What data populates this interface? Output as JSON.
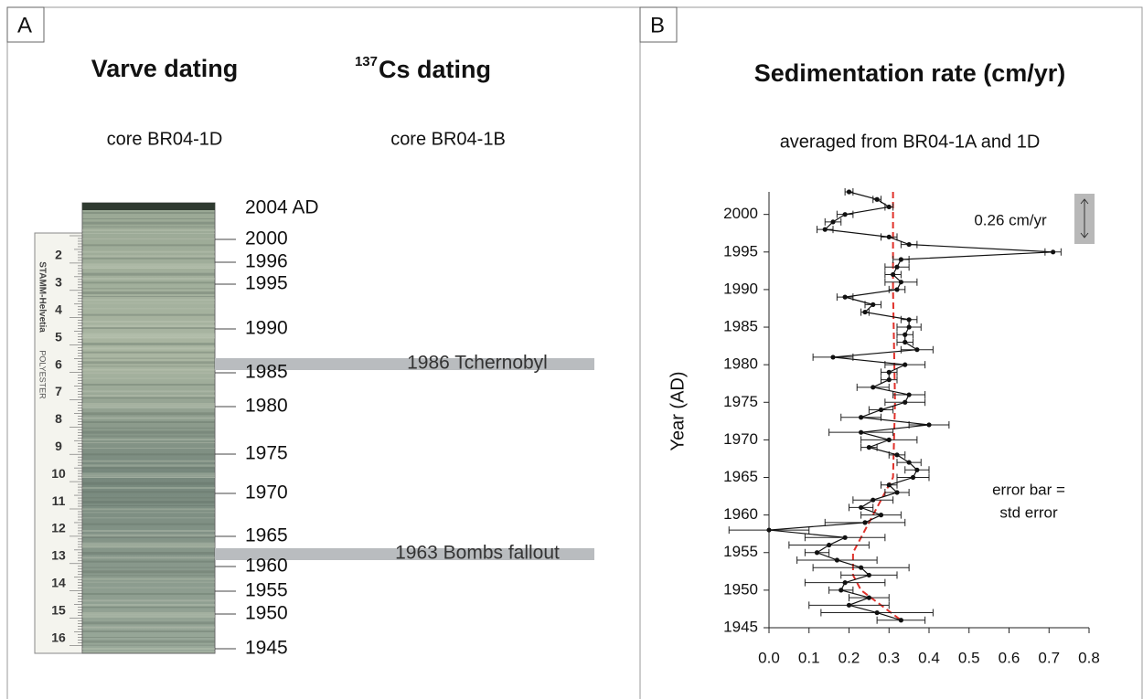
{
  "panel_a": {
    "label": "A",
    "title_left": "Varve dating",
    "title_right_sup": "137",
    "title_right": "Cs dating",
    "subtitle_left": "core BR04-1D",
    "subtitle_right": "core BR04-1B",
    "year_labels": [
      "2004 AD",
      "2000",
      "1996",
      "1995",
      "1990",
      "1985",
      "1980",
      "1975",
      "1970",
      "1965",
      "1960",
      "1955",
      "1950",
      "1945"
    ],
    "ruler_numbers": [
      2,
      3,
      4,
      5,
      6,
      7,
      8,
      9,
      10,
      11,
      12,
      13,
      14,
      15,
      16
    ],
    "ruler_brand": "STAMM-Helvetia",
    "ruler_material": "POLYESTER",
    "markers": [
      "1986 Tchernobyl",
      "1963 Bombs fallout"
    ]
  },
  "chart_data": {
    "type": "line",
    "panel_label": "B",
    "title": "Sedimentation rate (cm/yr)",
    "subtitle": "averaged from BR04-1A and 1D",
    "y_label": "Year (AD)",
    "annotation_scale": "0.26 cm/yr",
    "annotation_error": [
      "error bar =",
      "std error"
    ],
    "x": [
      2003,
      2002,
      2001,
      2000,
      1999,
      1998,
      1997,
      1996,
      1995,
      1994,
      1993,
      1992,
      1991,
      1990,
      1989,
      1988,
      1987,
      1986,
      1985,
      1984,
      1983,
      1982,
      1981,
      1980,
      1979,
      1978,
      1977,
      1976,
      1975,
      1974,
      1973,
      1972,
      1971,
      1970,
      1969,
      1968,
      1967,
      1966,
      1965,
      1964,
      1963,
      1962,
      1961,
      1960,
      1959,
      1958,
      1957,
      1956,
      1955,
      1954,
      1953,
      1952,
      1951,
      1950,
      1949,
      1948,
      1947,
      1946
    ],
    "series": [
      {
        "color": "#111111",
        "values": [
          0.2,
          0.27,
          0.3,
          0.19,
          0.16,
          0.14,
          0.3,
          0.35,
          0.71,
          0.33,
          0.32,
          0.31,
          0.33,
          0.32,
          0.19,
          0.26,
          0.24,
          0.35,
          0.35,
          0.34,
          0.34,
          0.37,
          0.16,
          0.34,
          0.3,
          0.3,
          0.26,
          0.35,
          0.34,
          0.28,
          0.23,
          0.4,
          0.23,
          0.3,
          0.25,
          0.32,
          0.35,
          0.37,
          0.36,
          0.3,
          0.32,
          0.26,
          0.23,
          0.28,
          0.24,
          0.0,
          0.19,
          0.15,
          0.12,
          0.17,
          0.23,
          0.25,
          0.19,
          0.18,
          0.25,
          0.2,
          0.27,
          0.33
        ],
        "errors": [
          0.01,
          0.01,
          0.01,
          0.02,
          0.02,
          0.02,
          0.02,
          0.02,
          0.02,
          0.02,
          0.03,
          0.02,
          0.04,
          0.02,
          0.02,
          0.02,
          0.01,
          0.02,
          0.03,
          0.02,
          0.02,
          0.04,
          0.05,
          0.05,
          0.02,
          0.02,
          0.04,
          0.04,
          0.05,
          0.03,
          0.05,
          0.05,
          0.08,
          0.07,
          0.02,
          0.02,
          0.03,
          0.03,
          0.04,
          0.02,
          0.03,
          0.05,
          0.03,
          0.05,
          0.1,
          0.1,
          0.1,
          0.1,
          0.03,
          0.1,
          0.12,
          0.07,
          0.1,
          0.03,
          0.05,
          0.1,
          0.14,
          0.06
        ]
      }
    ],
    "trend": {
      "color": "#e0302a",
      "x": [
        2003,
        1990,
        1975,
        1965,
        1962,
        1958,
        1955,
        1952,
        1950,
        1948,
        1946
      ],
      "values": [
        0.31,
        0.31,
        0.315,
        0.31,
        0.28,
        0.24,
        0.21,
        0.21,
        0.23,
        0.28,
        0.33
      ]
    },
    "xlim": [
      0,
      0.8
    ],
    "xticks": [
      {
        "value": 0,
        "label": "0.0"
      },
      0.1,
      0.2,
      0.3,
      0.4,
      0.5,
      0.6,
      0.7,
      0.8
    ],
    "ylim": [
      1945,
      2003
    ],
    "yticks": [
      1945,
      1950,
      1955,
      1960,
      1965,
      1970,
      1975,
      1980,
      1985,
      1990,
      1995,
      2000
    ]
  }
}
